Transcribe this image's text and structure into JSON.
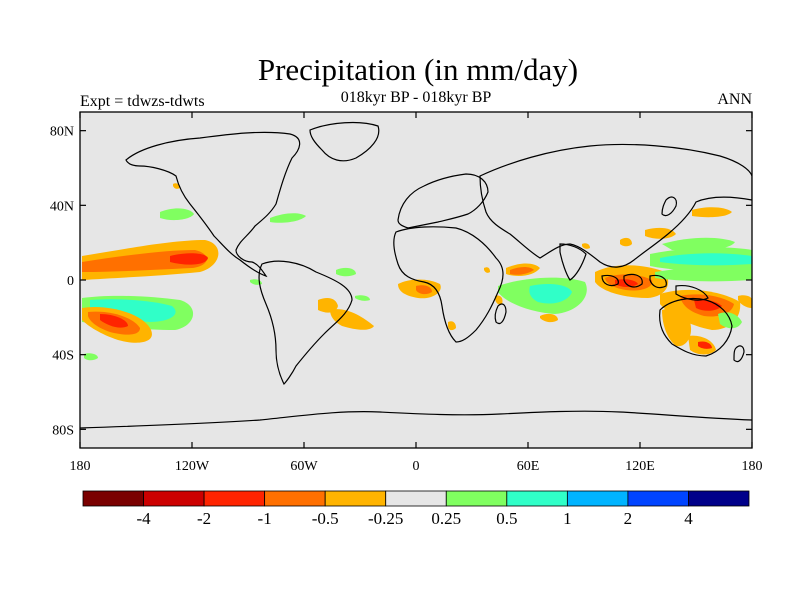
{
  "title": "Precipitation (in mm/day)",
  "subtitle": "018kyr BP - 018kyr BP",
  "left_label": "Expt = tdwzs-tdwts",
  "right_label": "ANN",
  "lat_ticks": [
    {
      "label": "80N",
      "lat": 80
    },
    {
      "label": "40N",
      "lat": 40
    },
    {
      "label": "0",
      "lat": 0
    },
    {
      "label": "40S",
      "lat": -40
    },
    {
      "label": "80S",
      "lat": -80
    }
  ],
  "lon_ticks": [
    {
      "label": "180",
      "lon": -180
    },
    {
      "label": "120W",
      "lon": -120
    },
    {
      "label": "60W",
      "lon": -60
    },
    {
      "label": "0",
      "lon": 0
    },
    {
      "label": "60E",
      "lon": 60
    },
    {
      "label": "120E",
      "lon": 120
    },
    {
      "label": "180",
      "lon": 180
    }
  ],
  "colorbar": {
    "colors": [
      "#7a0000",
      "#cc0000",
      "#ff2400",
      "#ff7000",
      "#ffb400",
      "#e6e6e6",
      "#80ff60",
      "#30ffc8",
      "#00b4ff",
      "#0044ff",
      "#00008a"
    ],
    "labels": [
      "-4",
      "-2",
      "-1",
      "-0.5",
      "-0.25",
      "0.25",
      "0.5",
      "1",
      "2",
      "4"
    ]
  },
  "colors": {
    "ocean_background": "#e6e6e6",
    "coast": "#000000"
  }
}
